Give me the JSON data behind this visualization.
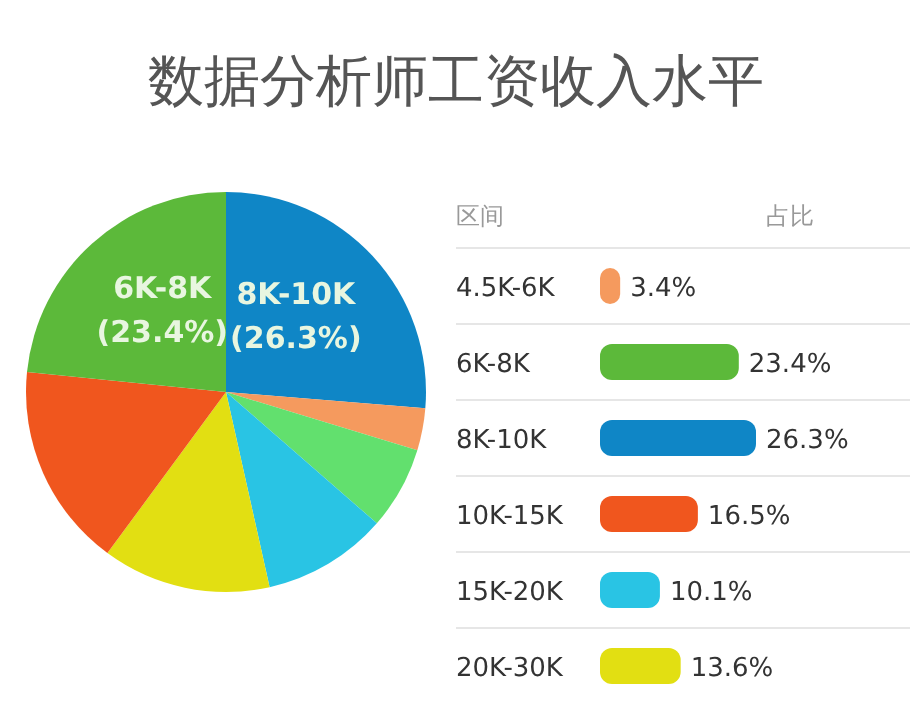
{
  "chart_data": [
    {
      "type": "pie",
      "title": "数据分析师工资收入水平",
      "categories": [
        null,
        null,
        null,
        null,
        null,
        null,
        null
      ],
      "values": [
        26.3,
        3.4,
        6.7,
        10.1,
        13.6,
        16.5,
        23.4
      ],
      "colors": [
        "#0f86c6",
        "#f59a5e",
        "#62e06e",
        "#29c4e4",
        "#e2df12",
        "#f0561e",
        "#5cb93a"
      ],
      "value_labels": [
        "8K-10K (26.3%)",
        null,
        null,
        null,
        null,
        null,
        "6K-8K (23.4%)"
      ]
    },
    {
      "type": "bar",
      "orientation": "horizontal",
      "ylabel": "区间",
      "xlabel": "占比",
      "categories": [
        "4.5K-6K",
        "6K-8K",
        "8K-10K",
        "10K-15K",
        "15K-20K",
        "20K-30K"
      ],
      "values": [
        3.4,
        23.4,
        26.3,
        16.5,
        10.1,
        13.6
      ],
      "colors": [
        "#f59a5e",
        "#5cb93a",
        "#0f86c6",
        "#f0561e",
        "#29c4e4",
        "#e2df12"
      ],
      "value_labels": [
        "3.4%",
        "23.4%",
        "26.3%",
        "16.5%",
        "10.1%",
        "13.6%"
      ]
    }
  ]
}
